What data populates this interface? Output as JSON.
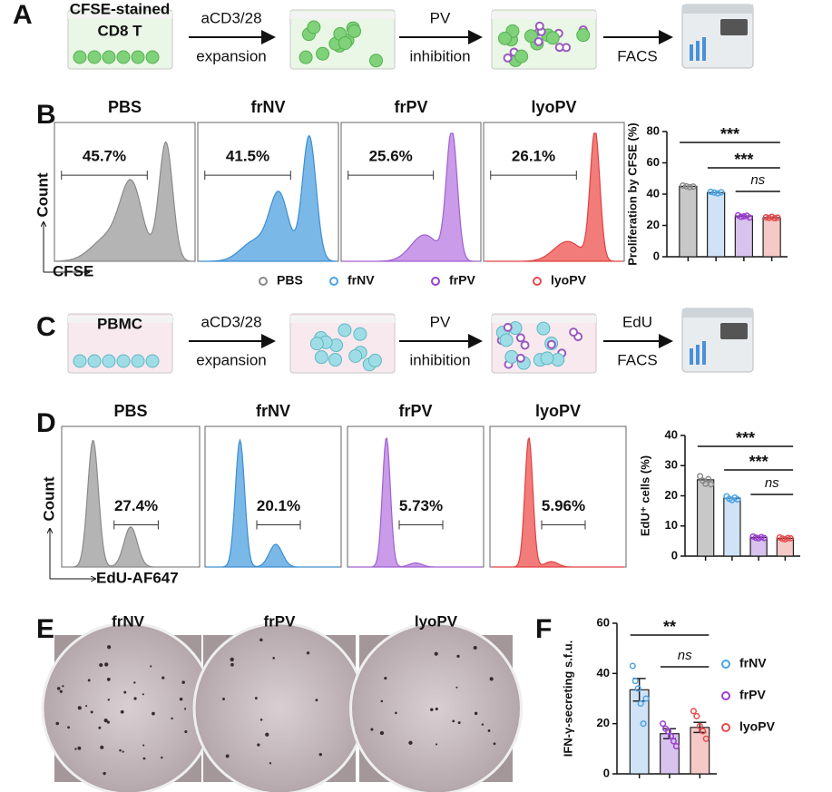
{
  "panel_labels": [
    "A",
    "B",
    "C",
    "D",
    "E",
    "F"
  ],
  "panel_a": {
    "well_label": [
      "CFSE-stained",
      "CD8 T"
    ],
    "arrows": [
      {
        "above": "aCD3/28",
        "below": "expansion"
      },
      {
        "above": "PV",
        "below": "inhibition"
      },
      {
        "below": "FACS"
      }
    ]
  },
  "panel_b_flow": {
    "y_label": "Count",
    "x_label": "CFSE",
    "plots": [
      {
        "title": "PBS",
        "gate": "45.7%"
      },
      {
        "title": "frNV",
        "gate": "41.5%"
      },
      {
        "title": "frPV",
        "gate": "25.6%"
      },
      {
        "title": "lyoPV",
        "gate": "26.1%"
      }
    ]
  },
  "panel_c": {
    "well_label": [
      "PBMC"
    ],
    "arrows": [
      {
        "above": "aCD3/28",
        "below": "expansion"
      },
      {
        "above": "PV",
        "below": "inhibition"
      },
      {
        "above": "EdU",
        "below": "FACS"
      }
    ]
  },
  "panel_d_flow": {
    "y_label": "Count",
    "x_label": "EdU-AF647",
    "plots": [
      {
        "title": "PBS",
        "gate": "27.4%"
      },
      {
        "title": "frNV",
        "gate": "20.1%"
      },
      {
        "title": "frPV",
        "gate": "5.73%"
      },
      {
        "title": "lyoPV",
        "gate": "5.96%"
      }
    ]
  },
  "panel_e": {
    "titles": [
      "frNV",
      "frPV",
      "lyoPV"
    ]
  },
  "chart_data": [
    {
      "type": "bar",
      "y_label": "Proliferation by CFSE (%)",
      "categories": [
        "PBS",
        "frNV",
        "frPV",
        "lyoPV"
      ],
      "legend": "bottom",
      "values": [
        45,
        41,
        26,
        25
      ],
      "points": [
        [
          45.5,
          45,
          44.5,
          44.8
        ],
        [
          41.5,
          41,
          40.5,
          41.2
        ],
        [
          26.5,
          25.5,
          25.8,
          26.2,
          25
        ],
        [
          25.2,
          24.8,
          25.5,
          24.6,
          25
        ]
      ],
      "colors": [
        "#c8c8c8",
        "#cfe2f6",
        "#d8c3ef",
        "#f5c9c6"
      ],
      "point_colors": [
        "#888888",
        "#4aa3e6",
        "#9b3fd0",
        "#e64b4b"
      ],
      "ylim": [
        0,
        80
      ],
      "yticks": [
        0,
        20,
        40,
        60,
        80
      ],
      "annotations": [
        "***",
        "***",
        "ns"
      ]
    },
    {
      "type": "bar",
      "y_label": "EdU⁺ cells (%)",
      "categories": [
        null,
        null,
        null,
        null
      ],
      "values": [
        25.3,
        19.2,
        6.2,
        5.9
      ],
      "points": [
        [
          26.5,
          25,
          24,
          25.5,
          23.8
        ],
        [
          19.8,
          19,
          18.6,
          19.4,
          18.8
        ],
        [
          6.5,
          6.1,
          5.9,
          6.3,
          6
        ],
        [
          6.2,
          5.8,
          5.6,
          6,
          5.9
        ]
      ],
      "colors": [
        "#c8c8c8",
        "#cfe2f6",
        "#d8c3ef",
        "#f5c9c6"
      ],
      "point_colors": [
        "#888888",
        "#4aa3e6",
        "#9b3fd0",
        "#e64b4b"
      ],
      "ylim": [
        0,
        40
      ],
      "yticks": [
        0,
        10,
        20,
        30,
        40
      ],
      "annotations": [
        "***",
        "***",
        "ns"
      ]
    },
    {
      "type": "bar",
      "y_label": "IFN-γ-secreting s.f.u.",
      "categories": [
        "frNV",
        "frPV",
        "lyoPV"
      ],
      "legend": "right",
      "values": [
        33.5,
        16,
        18.5
      ],
      "errors": [
        4.5,
        2,
        2
      ],
      "points": [
        [
          43,
          37,
          34,
          28,
          20,
          30
        ],
        [
          20,
          18,
          17,
          15,
          13,
          11
        ],
        [
          25,
          23,
          19,
          17,
          14
        ]
      ],
      "colors": [
        "#cfe2f6",
        "#d8c3ef",
        "#f5c9c6"
      ],
      "point_colors": [
        "#4aa3e6",
        "#9b3fd0",
        "#e64b4b"
      ],
      "ylim": [
        0,
        60
      ],
      "yticks": [
        0,
        20,
        40,
        60
      ],
      "annotations": [
        "**",
        "ns"
      ]
    }
  ]
}
